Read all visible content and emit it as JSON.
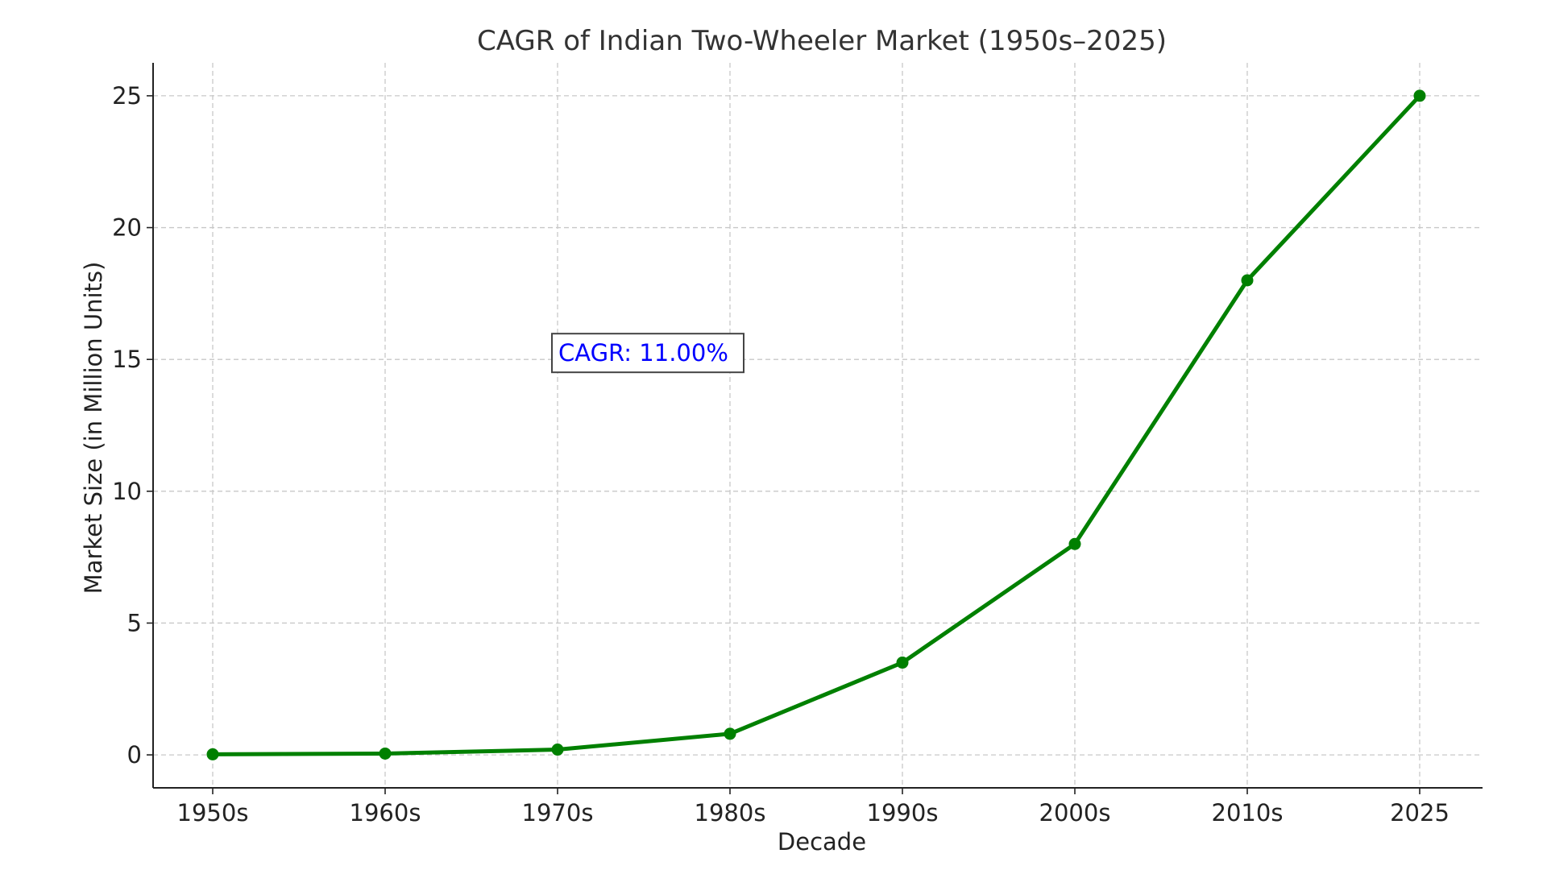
{
  "chart_data": {
    "type": "line",
    "title": "CAGR of Indian Two-Wheeler Market (1950s–2025)",
    "xlabel": "Decade",
    "ylabel": "Market Size (in Million Units)",
    "categories": [
      "1950s",
      "1960s",
      "1970s",
      "1980s",
      "1990s",
      "2000s",
      "2010s",
      "2025"
    ],
    "series": [
      {
        "values": [
          0.02,
          0.05,
          0.2,
          0.8,
          3.5,
          8,
          18,
          25
        ]
      }
    ],
    "yticks": [
      0,
      5,
      10,
      15,
      20,
      25
    ],
    "ylim": [
      -1.25,
      26.25
    ],
    "grid": true,
    "marker": "circle",
    "colors": {
      "line": "#008000",
      "marker": "#008000",
      "annotation_text": "#0000ff"
    },
    "annotations": [
      {
        "text": "CAGR: 11.00%",
        "x_category": "1970s",
        "y": 15
      }
    ]
  }
}
